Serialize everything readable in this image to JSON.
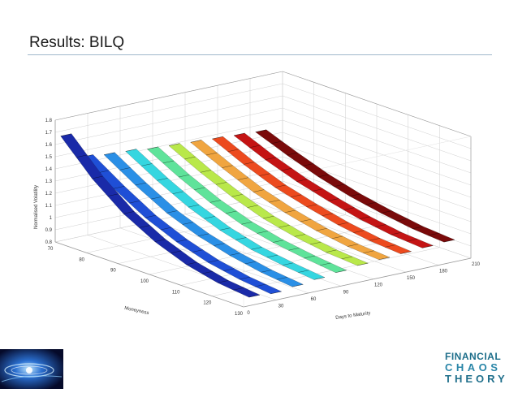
{
  "slide": {
    "title": "Results: BILQ"
  },
  "chart_data": {
    "type": "surface3d",
    "title": "",
    "zlabel": "Normalised Volatility",
    "xlabel": "Moneyness",
    "ylabel": "Days to Maturity",
    "z_ticks": [
      "0.8",
      "0.9",
      "1",
      "1.1",
      "1.2",
      "1.3",
      "1.4",
      "1.5",
      "1.6",
      "1.7",
      "1.8"
    ],
    "x_ticks": [
      "70",
      "80",
      "90",
      "100",
      "110",
      "120",
      "130"
    ],
    "y_ticks": [
      "0",
      "30",
      "60",
      "90",
      "120",
      "150",
      "180",
      "210"
    ],
    "zlim": [
      0.8,
      1.8
    ],
    "xlim": [
      70,
      130
    ],
    "ylim": [
      0,
      210
    ],
    "grid": true,
    "series": [
      {
        "maturity": 10,
        "color": "#1a2aa8",
        "values": [
          1.66,
          1.4,
          1.2,
          1.06,
          0.96,
          0.9,
          0.87
        ]
      },
      {
        "maturity": 30,
        "color": "#1f4fd6",
        "values": [
          1.45,
          1.28,
          1.13,
          1.02,
          0.94,
          0.89,
          0.86
        ]
      },
      {
        "maturity": 50,
        "color": "#2a8fe6",
        "values": [
          1.43,
          1.27,
          1.13,
          1.03,
          0.96,
          0.91,
          0.88
        ]
      },
      {
        "maturity": 70,
        "color": "#35d6e0",
        "values": [
          1.42,
          1.27,
          1.14,
          1.04,
          0.97,
          0.93,
          0.9
        ]
      },
      {
        "maturity": 90,
        "color": "#5fe39a",
        "values": [
          1.4,
          1.26,
          1.14,
          1.05,
          0.99,
          0.95,
          0.92
        ]
      },
      {
        "maturity": 110,
        "color": "#b9e84a",
        "values": [
          1.39,
          1.26,
          1.15,
          1.06,
          1.0,
          0.96,
          0.94
        ]
      },
      {
        "maturity": 130,
        "color": "#f0a540",
        "values": [
          1.38,
          1.26,
          1.15,
          1.07,
          1.01,
          0.97,
          0.95
        ]
      },
      {
        "maturity": 150,
        "color": "#ec4a1e",
        "values": [
          1.37,
          1.25,
          1.15,
          1.08,
          1.02,
          0.98,
          0.96
        ]
      },
      {
        "maturity": 170,
        "color": "#c41414",
        "values": [
          1.36,
          1.25,
          1.16,
          1.09,
          1.03,
          0.99,
          0.97
        ]
      },
      {
        "maturity": 190,
        "color": "#7a0a0a",
        "values": [
          1.35,
          1.25,
          1.16,
          1.09,
          1.04,
          1.0,
          0.98
        ]
      }
    ]
  },
  "logos": {
    "right": {
      "line1": "FINANCIAL",
      "line2": "CHAOS",
      "line3": "THEORY"
    }
  }
}
